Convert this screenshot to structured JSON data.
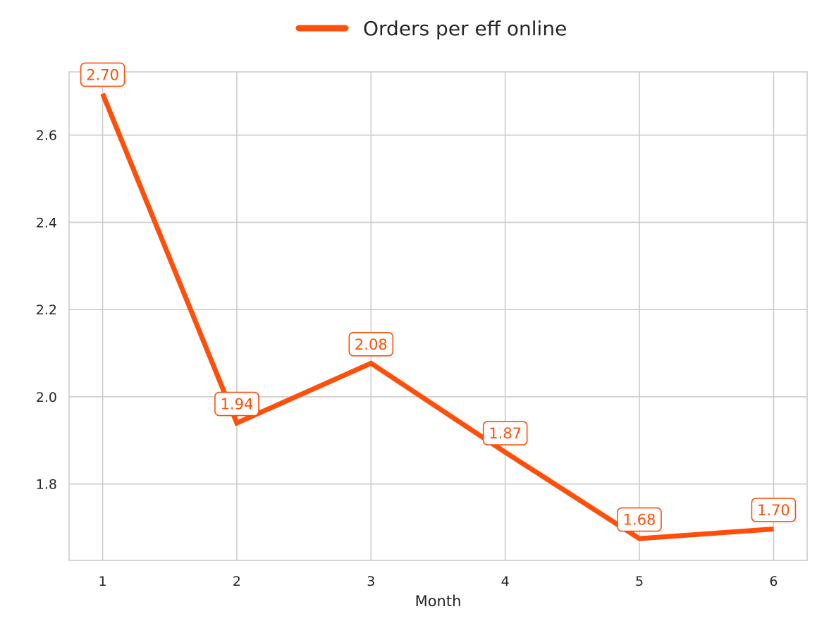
{
  "chart_data": {
    "type": "line",
    "title": "",
    "xlabel": "Month",
    "ylabel": "",
    "x": [
      1,
      2,
      3,
      4,
      5,
      6
    ],
    "x_tick_labels": [
      "1",
      "2",
      "3",
      "4",
      "5",
      "6"
    ],
    "y_ticks": [
      1.8,
      2.0,
      2.2,
      2.4,
      2.6
    ],
    "y_tick_labels": [
      "1.8",
      "2.0",
      "2.2",
      "2.4",
      "2.6"
    ],
    "xlim": [
      0.75,
      6.25
    ],
    "ylim": [
      1.625,
      2.745
    ],
    "grid": true,
    "legend_position": "top-center, outside plot",
    "series": [
      {
        "name": "Orders per eff online",
        "color": "#FF4F0A",
        "values": [
          2.695,
          1.94,
          2.077,
          1.873,
          1.675,
          1.697
        ],
        "data_labels": [
          "2.70",
          "1.94",
          "2.08",
          "1.87",
          "1.68",
          "1.70"
        ]
      }
    ]
  }
}
